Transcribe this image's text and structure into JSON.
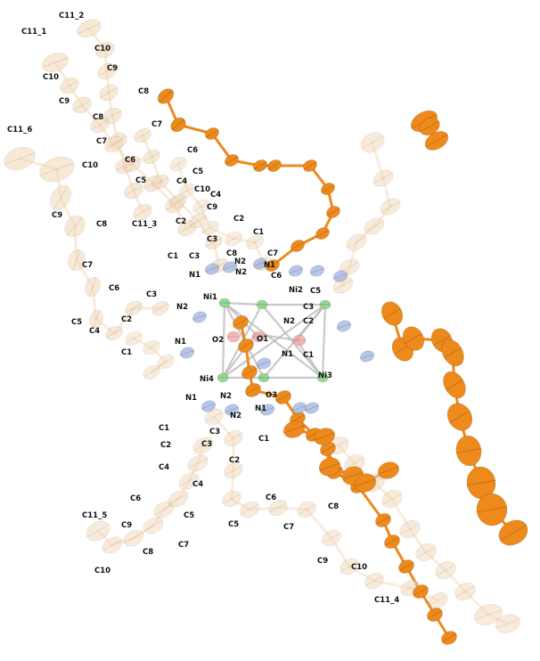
{
  "labels": [
    {
      "id": "c11_2",
      "text": "C11_2"
    },
    {
      "id": "c11_1",
      "text": "C11_1"
    },
    {
      "id": "c10_a",
      "text": "C10"
    },
    {
      "id": "c10_b",
      "text": "C10"
    },
    {
      "id": "c9_a",
      "text": "C9"
    },
    {
      "id": "c9_b",
      "text": "C9"
    },
    {
      "id": "c8_a",
      "text": "C8"
    },
    {
      "id": "c8_b",
      "text": "C8"
    },
    {
      "id": "c7_a",
      "text": "C7"
    },
    {
      "id": "c7_b",
      "text": "C7"
    },
    {
      "id": "c6_a",
      "text": "C6"
    },
    {
      "id": "c6_b",
      "text": "C6"
    },
    {
      "id": "c5_a",
      "text": "C5"
    },
    {
      "id": "c5_b",
      "text": "C5"
    },
    {
      "id": "c4_a",
      "text": "C4"
    },
    {
      "id": "c4_b",
      "text": "C4"
    },
    {
      "id": "c11_6",
      "text": "C11_6"
    },
    {
      "id": "c10_c",
      "text": "C10"
    },
    {
      "id": "c10_d",
      "text": "C10"
    },
    {
      "id": "c9_c",
      "text": "C9"
    },
    {
      "id": "c9_d",
      "text": "C9"
    },
    {
      "id": "c8_c",
      "text": "C8"
    },
    {
      "id": "c11_3",
      "text": "C11_3"
    },
    {
      "id": "c2_a",
      "text": "C2"
    },
    {
      "id": "c2_b",
      "text": "C2"
    },
    {
      "id": "c1_a",
      "text": "C1"
    },
    {
      "id": "c1_b",
      "text": "C1"
    },
    {
      "id": "c3_a",
      "text": "C3"
    },
    {
      "id": "c3_b",
      "text": "C3"
    },
    {
      "id": "c8_d",
      "text": "C8"
    },
    {
      "id": "c7_c",
      "text": "C7"
    },
    {
      "id": "c7_d",
      "text": "C7"
    },
    {
      "id": "n2_a",
      "text": "N2"
    },
    {
      "id": "n2_b",
      "text": "N2"
    },
    {
      "id": "n1_a",
      "text": "N1"
    },
    {
      "id": "n1_b",
      "text": "N1"
    },
    {
      "id": "c6_c",
      "text": "C6"
    },
    {
      "id": "c6_d",
      "text": "C6"
    },
    {
      "id": "ni1",
      "text": "Ni1"
    },
    {
      "id": "ni2",
      "text": "Ni2"
    },
    {
      "id": "c5_c",
      "text": "C5"
    },
    {
      "id": "c3_c",
      "text": "C3"
    },
    {
      "id": "c3_d",
      "text": "C3"
    },
    {
      "id": "n2_c",
      "text": "N2"
    },
    {
      "id": "n2_d",
      "text": "N2"
    },
    {
      "id": "c2_c",
      "text": "C2"
    },
    {
      "id": "c2_d",
      "text": "C2"
    },
    {
      "id": "c5_d",
      "text": "C5"
    },
    {
      "id": "o2",
      "text": "O2"
    },
    {
      "id": "o1",
      "text": "O1"
    },
    {
      "id": "c4_c",
      "text": "C4"
    },
    {
      "id": "n1_c",
      "text": "N1"
    },
    {
      "id": "n1_d",
      "text": "N1"
    },
    {
      "id": "c1_c",
      "text": "C1"
    },
    {
      "id": "c1_d",
      "text": "C1"
    },
    {
      "id": "ni4",
      "text": "Ni4"
    },
    {
      "id": "ni3",
      "text": "Ni3"
    },
    {
      "id": "o3",
      "text": "O3"
    },
    {
      "id": "n1_e",
      "text": "N1"
    },
    {
      "id": "n1_f",
      "text": "N1"
    },
    {
      "id": "n2_e",
      "text": "N2"
    },
    {
      "id": "n2_f",
      "text": "N2"
    },
    {
      "id": "c1_e",
      "text": "C1"
    },
    {
      "id": "c1_f",
      "text": "C1"
    },
    {
      "id": "c3_e",
      "text": "C3"
    },
    {
      "id": "c2_e",
      "text": "C2"
    },
    {
      "id": "c2_f",
      "text": "C2"
    },
    {
      "id": "c3_f",
      "text": "C3"
    },
    {
      "id": "c4_d",
      "text": "C4"
    },
    {
      "id": "c4_e",
      "text": "C4"
    },
    {
      "id": "c6_e",
      "text": "C6"
    },
    {
      "id": "c6_f",
      "text": "C6"
    },
    {
      "id": "c5_e",
      "text": "C5"
    },
    {
      "id": "c5_f",
      "text": "C5"
    },
    {
      "id": "c11_5",
      "text": "C11_5"
    },
    {
      "id": "c9_e",
      "text": "C9"
    },
    {
      "id": "c9_f",
      "text": "C9"
    },
    {
      "id": "c8_e",
      "text": "C8"
    },
    {
      "id": "c8_f",
      "text": "C8"
    },
    {
      "id": "c7_e",
      "text": "C7"
    },
    {
      "id": "c7_f",
      "text": "C7"
    },
    {
      "id": "c10_e",
      "text": "C10"
    },
    {
      "id": "c10_f",
      "text": "C10"
    },
    {
      "id": "c11_4",
      "text": "C11_4"
    }
  ],
  "colors": {
    "carbon_faded": "#f3d8b8",
    "carbon_orange": "#ee8a1c",
    "nitrogen": "#9fb3e0",
    "nickel": "#8fd98f",
    "oxygen": "#f0a0a0",
    "bond_grey": "#b8b8b8"
  }
}
